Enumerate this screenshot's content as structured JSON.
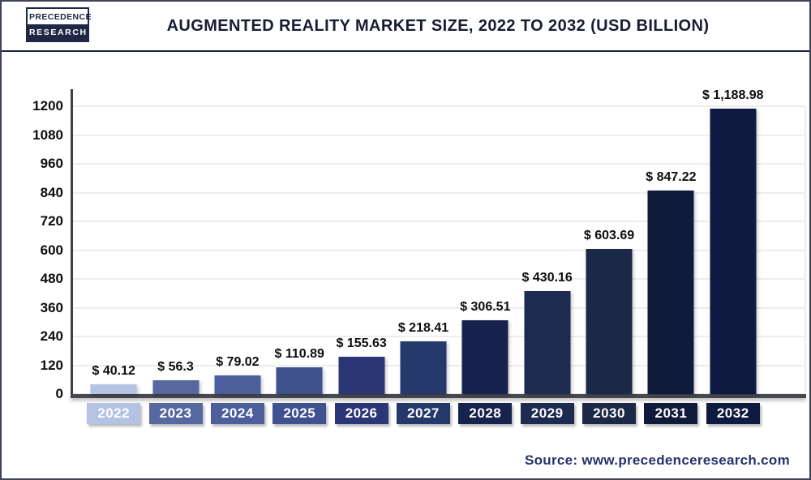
{
  "header": {
    "logo_line1": "PRECEDENCE",
    "logo_line2": "RESEARCH",
    "title": "AUGMENTED REALITY MARKET SIZE, 2022 TO 2032 (USD BILLION)"
  },
  "footer": {
    "source": "Source: www.precedenceresearch.com"
  },
  "colors": {
    "frame_border": "#3f4355",
    "header_divider": "#1b2344",
    "title_text": "#161d33",
    "axis_line": "#47474f",
    "gridline": "#ededed",
    "tick_text": "#0d0d0d",
    "value_label_text": "#0d0d0d",
    "year_label_text": "#ffffff",
    "source_text": "#26336b",
    "bar_colors": [
      "#b4c2e4",
      "#57689f",
      "#4c5e9c",
      "#40518f",
      "#2b3677",
      "#25386b",
      "#17224e",
      "#1e2b50",
      "#1c2847",
      "#101a3a",
      "#0f1a40"
    ]
  },
  "chart_data": {
    "type": "bar",
    "title": "Augmented Reality Market Size, 2022 to 2032 (USD Billion)",
    "unit": "USD Billion",
    "categories": [
      "2022",
      "2023",
      "2024",
      "2025",
      "2026",
      "2027",
      "2028",
      "2029",
      "2030",
      "2031",
      "2032"
    ],
    "values": [
      40.12,
      56.3,
      79.02,
      110.89,
      155.63,
      218.41,
      306.51,
      430.16,
      603.69,
      847.22,
      1188.98
    ],
    "value_labels": [
      "$ 40.12",
      "$ 56.3",
      "$ 79.02",
      "$ 110.89",
      "$ 155.63",
      "$ 218.41",
      "$ 306.51",
      "$ 430.16",
      "$ 603.69",
      "$ 847.22",
      "$ 1,188.98"
    ],
    "y_ticks": [
      0,
      120,
      240,
      360,
      480,
      600,
      720,
      840,
      960,
      1080,
      1200
    ],
    "ylim": [
      0,
      1200
    ],
    "xlabel": "",
    "ylabel": "",
    "grid": "horizontal",
    "legend": "none"
  }
}
